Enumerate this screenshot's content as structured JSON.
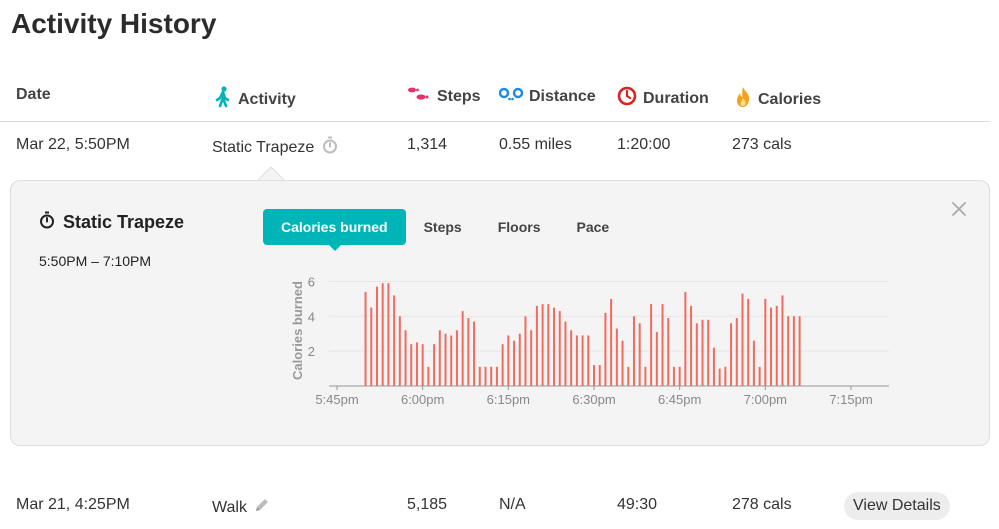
{
  "page": {
    "title": "Activity History"
  },
  "columns": {
    "date": "Date",
    "activity": "Activity",
    "steps": "Steps",
    "distance": "Distance",
    "duration": "Duration",
    "calories": "Calories"
  },
  "icons": {
    "activity": "walking-person-icon",
    "steps": "footprints-icon",
    "distance": "location-pins-icon",
    "duration": "clock-icon",
    "calories": "flame-icon",
    "stopwatch": "stopwatch-icon",
    "edit": "pencil-icon",
    "close": "close-icon"
  },
  "colors": {
    "accent": "#00b5b8",
    "bar": "#f26b5e",
    "steps": "#e8336a",
    "distance": "#1e88e5",
    "duration": "#e02020",
    "calories": "#f7a11a"
  },
  "rows": [
    {
      "date": "Mar 22, 5:50PM",
      "activity": "Static Trapeze",
      "steps": "1,314",
      "distance": "0.55 miles",
      "duration": "1:20:00",
      "calories": "273 cals"
    },
    {
      "date": "Mar 21, 4:25PM",
      "activity": "Walk",
      "steps": "5,185",
      "distance": "N/A",
      "duration": "49:30",
      "calories": "278 cals",
      "action": "View Details"
    }
  ],
  "detail": {
    "title": "Static Trapeze",
    "time_range": "5:50PM – 7:10PM",
    "tabs": [
      "Calories burned",
      "Steps",
      "Floors",
      "Pace"
    ],
    "active_tab": 0
  },
  "chart_data": {
    "type": "bar",
    "ylabel": "Calories burned",
    "ylim": [
      0,
      6.6
    ],
    "yticks": [
      2,
      4,
      6
    ],
    "xticks": [
      "5:45pm",
      "6:00pm",
      "6:15pm",
      "6:30pm",
      "6:45pm",
      "7:00pm",
      "7:15pm"
    ],
    "xtick_minutes": [
      0,
      15,
      30,
      45,
      60,
      75,
      90
    ],
    "x_start_minute": 5,
    "values": [
      5.4,
      4.5,
      5.7,
      5.9,
      5.9,
      5.2,
      4.0,
      3.2,
      2.4,
      2.5,
      2.4,
      1.1,
      2.4,
      3.2,
      3.0,
      2.9,
      3.2,
      4.3,
      3.9,
      3.7,
      1.1,
      1.1,
      1.1,
      1.1,
      2.4,
      2.9,
      2.6,
      3.0,
      4.0,
      3.2,
      4.6,
      4.7,
      4.7,
      4.5,
      4.3,
      3.7,
      3.2,
      2.9,
      2.9,
      2.9,
      1.2,
      1.2,
      4.2,
      5.0,
      3.3,
      2.6,
      1.1,
      4.0,
      3.6,
      1.1,
      4.7,
      3.1,
      4.7,
      3.9,
      1.1,
      1.1,
      5.4,
      4.6,
      3.6,
      3.8,
      3.8,
      2.2,
      1.0,
      1.1,
      3.6,
      3.9,
      5.3,
      5.0,
      2.6,
      1.1,
      5.0,
      4.5,
      4.6,
      5.2,
      4.0,
      4.0,
      4.0
    ]
  }
}
